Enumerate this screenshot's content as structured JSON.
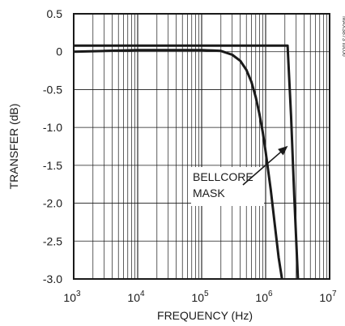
{
  "chart_data": {
    "type": "line",
    "title": "",
    "xlabel": "FREQUENCY (Hz)",
    "ylabel": "TRANSFER (dB)",
    "xscale": "log",
    "xlim": [
      1000,
      10000000
    ],
    "ylim": [
      -3.0,
      0.5
    ],
    "x_ticks": [
      {
        "value": 1000,
        "base": "10",
        "exp": "3"
      },
      {
        "value": 10000,
        "base": "10",
        "exp": "4"
      },
      {
        "value": 100000,
        "base": "10",
        "exp": "5"
      },
      {
        "value": 1000000,
        "base": "10",
        "exp": "6"
      },
      {
        "value": 10000000,
        "base": "10",
        "exp": "7"
      }
    ],
    "y_ticks": [
      {
        "value": 0.5,
        "label": "0.5"
      },
      {
        "value": 0,
        "label": "0"
      },
      {
        "value": -0.5,
        "label": "-0.5"
      },
      {
        "value": -1.0,
        "label": "-1.0"
      },
      {
        "value": -1.5,
        "label": "-1.5"
      },
      {
        "value": -2.0,
        "label": "-2.0"
      },
      {
        "value": -2.5,
        "label": "-2.5"
      },
      {
        "value": -3.0,
        "label": "-3.0"
      }
    ],
    "grid": true,
    "series": [
      {
        "x": [
          1000,
          3000,
          10000,
          30000,
          100000,
          150000,
          200000,
          300000,
          400000,
          500000,
          600000,
          700000,
          800000,
          900000,
          1000000,
          1200000,
          1400000,
          1600000,
          1800000
        ],
        "y": [
          0,
          0.01,
          0.02,
          0.02,
          0.02,
          0.015,
          0.01,
          -0.04,
          -0.12,
          -0.24,
          -0.4,
          -0.6,
          -0.82,
          -1.06,
          -1.32,
          -1.82,
          -2.3,
          -2.72,
          -3.0
        ]
      },
      {
        "x": [
          1000,
          2200000,
          2500000,
          2800000,
          3200000
        ],
        "y": [
          0.08,
          0.08,
          -0.85,
          -1.9,
          -3.0
        ]
      }
    ],
    "annotations": [
      {
        "lines": [
          "BELLCORE",
          "MASK"
        ],
        "target_x": 2500000,
        "target_y": -1.2
      }
    ]
  },
  "side_id": "MAX3873 toc06"
}
